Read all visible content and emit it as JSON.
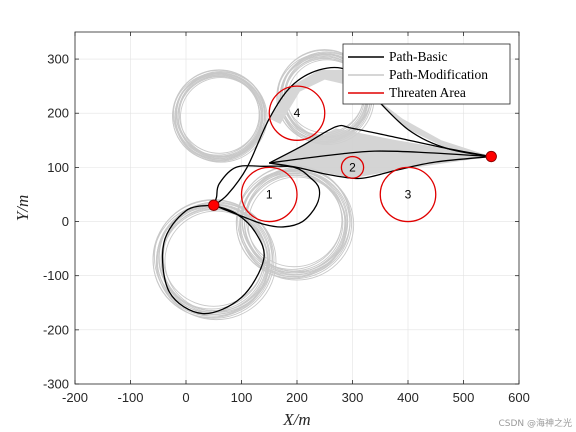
{
  "chart_data": {
    "type": "line",
    "xlabel": "X/m",
    "ylabel": "Y/m",
    "xlim": [
      -200,
      600
    ],
    "ylim": [
      -300,
      350
    ],
    "xticks": [
      -200,
      -100,
      0,
      100,
      200,
      300,
      400,
      500,
      600
    ],
    "yticks": [
      -300,
      -200,
      -100,
      0,
      100,
      200,
      300
    ],
    "grid": true,
    "legend_position": "top-right",
    "legend": [
      {
        "label": "Path-Basic",
        "color": "#000000"
      },
      {
        "label": "Path-Modification",
        "color": "#c8c8c8"
      },
      {
        "label": "Threaten Area",
        "color": "#e00000"
      }
    ],
    "threaten_areas": [
      {
        "label": "1",
        "x": 150,
        "y": 50,
        "r": 50
      },
      {
        "label": "2",
        "x": 300,
        "y": 100,
        "r": 20
      },
      {
        "label": "3",
        "x": 400,
        "y": 50,
        "r": 50
      },
      {
        "label": "4",
        "x": 200,
        "y": 200,
        "r": 50
      }
    ],
    "start_point": {
      "x": 50,
      "y": 30
    },
    "end_point": {
      "x": 550,
      "y": 120
    },
    "path_basic": [
      {
        "name": "loop-left",
        "points": [
          [
            50,
            30
          ],
          [
            0,
            20
          ],
          [
            -40,
            -40
          ],
          [
            -30,
            -130
          ],
          [
            30,
            -170
          ],
          [
            100,
            -140
          ],
          [
            140,
            -70
          ],
          [
            125,
            -20
          ],
          [
            90,
            15
          ],
          [
            50,
            30
          ]
        ]
      },
      {
        "name": "loop-center",
        "points": [
          [
            50,
            30
          ],
          [
            100,
            10
          ],
          [
            140,
            -5
          ],
          [
            175,
            -10
          ],
          [
            210,
            0
          ],
          [
            235,
            30
          ],
          [
            240,
            60
          ],
          [
            225,
            80
          ],
          [
            195,
            100
          ],
          [
            140,
            102
          ],
          [
            90,
            100
          ],
          [
            60,
            70
          ],
          [
            55,
            45
          ],
          [
            50,
            30
          ]
        ]
      },
      {
        "name": "outer-route",
        "points": [
          [
            50,
            30
          ],
          [
            75,
            50
          ],
          [
            110,
            100
          ],
          [
            150,
            190
          ],
          [
            190,
            250
          ],
          [
            240,
            280
          ],
          [
            290,
            280
          ],
          [
            330,
            240
          ],
          [
            400,
            170
          ],
          [
            470,
            135
          ],
          [
            550,
            120
          ]
        ]
      },
      {
        "name": "mid-route",
        "points": [
          [
            150,
            108
          ],
          [
            200,
            115
          ],
          [
            280,
            125
          ],
          [
            340,
            130
          ],
          [
            420,
            128
          ],
          [
            550,
            120
          ]
        ]
      },
      {
        "name": "lower-route",
        "points": [
          [
            150,
            108
          ],
          [
            200,
            100
          ],
          [
            250,
            88
          ],
          [
            300,
            80
          ],
          [
            330,
            82
          ],
          [
            380,
            95
          ],
          [
            450,
            110
          ],
          [
            550,
            120
          ]
        ]
      },
      {
        "name": "upper-route",
        "points": [
          [
            150,
            108
          ],
          [
            210,
            140
          ],
          [
            270,
            175
          ],
          [
            300,
            172
          ],
          [
            380,
            155
          ],
          [
            470,
            135
          ],
          [
            550,
            120
          ]
        ]
      }
    ],
    "path_modification": [
      {
        "name": "loop-upper-left",
        "center": [
          60,
          195
        ],
        "r": 78,
        "spread": 6
      },
      {
        "name": "loop-lower",
        "center": [
          50,
          -70
        ],
        "r": 100,
        "spread": 9
      },
      {
        "name": "loop-center",
        "center": [
          195,
          -2
        ],
        "r": 95,
        "spread": 9
      },
      {
        "name": "loop-top",
        "center": [
          250,
          230
        ],
        "r": 78,
        "spread": 8
      }
    ]
  },
  "figure": {
    "watermark": "CSDN @海神之光"
  }
}
